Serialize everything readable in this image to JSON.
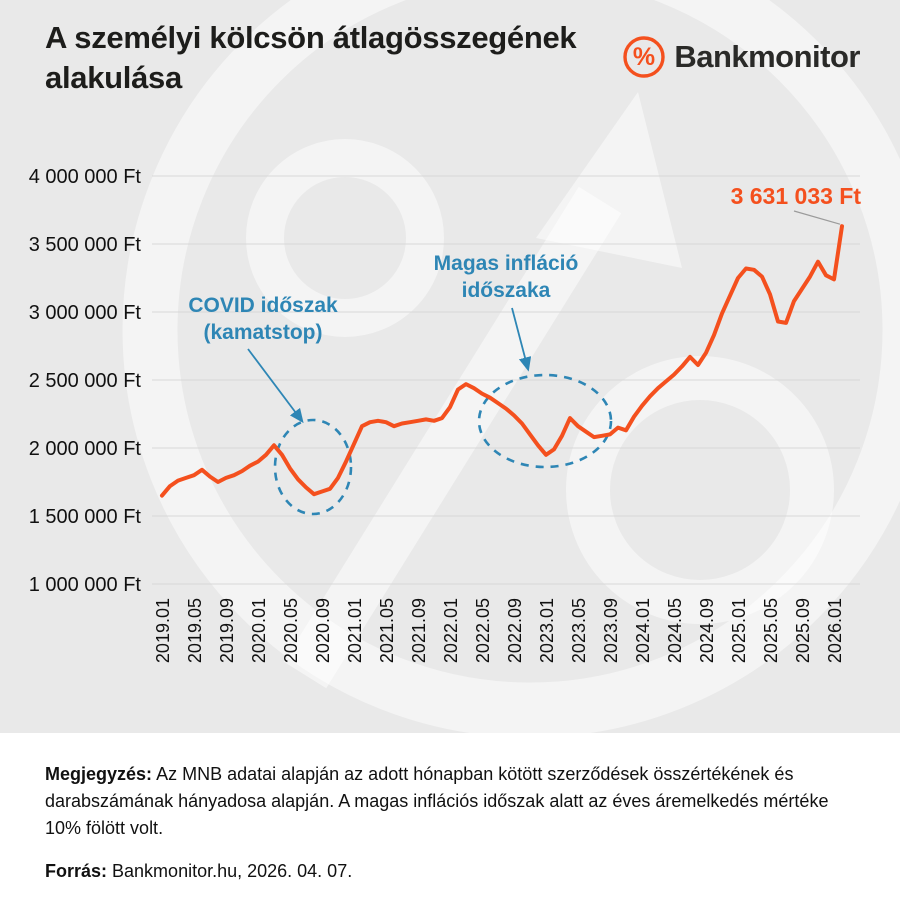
{
  "header": {
    "title": "A személyi kölcsön átlagösszegének alakulása",
    "brand": "Bankmonitor",
    "brand_icon": "percent-in-circle",
    "brand_color": "#f4501e"
  },
  "chart_data": {
    "type": "line",
    "series_name": "A személyi kölcsön átlagösszege",
    "unit": "Ft",
    "line_color": "#f4501e",
    "grid": true,
    "ylim": [
      1000000,
      4000000
    ],
    "yticks": [
      {
        "value": 4000000,
        "label": "4 000 000 Ft"
      },
      {
        "value": 3500000,
        "label": "3 500 000 Ft"
      },
      {
        "value": 3000000,
        "label": "3 000 000 Ft"
      },
      {
        "value": 2500000,
        "label": "2 500 000 Ft"
      },
      {
        "value": 2000000,
        "label": "2 000 000 Ft"
      },
      {
        "value": 1500000,
        "label": "1 500 000 Ft"
      },
      {
        "value": 1000000,
        "label": "1 000 000 Ft"
      }
    ],
    "x_tick_every": 4,
    "x": [
      "2019.01",
      "2019.02",
      "2019.03",
      "2019.04",
      "2019.05",
      "2019.06",
      "2019.07",
      "2019.08",
      "2019.09",
      "2019.10",
      "2019.11",
      "2019.12",
      "2020.01",
      "2020.02",
      "2020.03",
      "2020.04",
      "2020.05",
      "2020.06",
      "2020.07",
      "2020.08",
      "2020.09",
      "2020.10",
      "2020.11",
      "2020.12",
      "2021.01",
      "2021.02",
      "2021.03",
      "2021.04",
      "2021.05",
      "2021.06",
      "2021.07",
      "2021.08",
      "2021.09",
      "2021.10",
      "2021.11",
      "2021.12",
      "2022.01",
      "2022.02",
      "2022.03",
      "2022.04",
      "2022.05",
      "2022.06",
      "2022.07",
      "2022.08",
      "2022.09",
      "2022.10",
      "2022.11",
      "2022.12",
      "2023.01",
      "2023.02",
      "2023.03",
      "2023.04",
      "2023.05",
      "2023.06",
      "2023.07",
      "2023.08",
      "2023.09",
      "2023.10",
      "2023.11",
      "2023.12",
      "2024.01",
      "2024.02",
      "2024.03",
      "2024.04",
      "2024.05",
      "2024.06",
      "2024.07",
      "2024.08",
      "2024.09",
      "2024.10",
      "2024.11",
      "2024.12",
      "2025.01",
      "2025.02",
      "2025.03",
      "2025.04",
      "2025.05",
      "2025.06",
      "2025.07",
      "2025.08",
      "2025.09",
      "2025.10",
      "2025.11",
      "2025.12",
      "2026.01",
      "2026.02"
    ],
    "values": [
      1650000,
      1720000,
      1760000,
      1780000,
      1800000,
      1840000,
      1790000,
      1750000,
      1780000,
      1800000,
      1830000,
      1870000,
      1900000,
      1950000,
      2020000,
      1950000,
      1850000,
      1770000,
      1710000,
      1660000,
      1680000,
      1700000,
      1780000,
      1900000,
      2030000,
      2160000,
      2190000,
      2200000,
      2190000,
      2160000,
      2180000,
      2190000,
      2200000,
      2210000,
      2200000,
      2220000,
      2300000,
      2430000,
      2470000,
      2440000,
      2400000,
      2370000,
      2330000,
      2290000,
      2240000,
      2180000,
      2100000,
      2020000,
      1950000,
      1990000,
      2090000,
      2220000,
      2160000,
      2120000,
      2080000,
      2090000,
      2100000,
      2150000,
      2130000,
      2230000,
      2310000,
      2380000,
      2440000,
      2490000,
      2540000,
      2600000,
      2670000,
      2610000,
      2700000,
      2830000,
      2990000,
      3120000,
      3250000,
      3320000,
      3310000,
      3260000,
      3130000,
      2930000,
      2920000,
      3080000,
      3170000,
      3260000,
      3370000,
      3270000,
      3240000,
      3631033
    ],
    "last_value_label": "3 631 033 Ft",
    "annotations": [
      {
        "id": "covid",
        "line1": "COVID időszak",
        "line2": "(kamatstop)",
        "color": "#2e86b5"
      },
      {
        "id": "inflation",
        "line1": "Magas infláció",
        "line2": "időszaka",
        "color": "#2e86b5"
      }
    ]
  },
  "footer": {
    "note_label": "Megjegyzés:",
    "note_text": "Az MNB adatai alapján az adott hónapban kötött szerződések összértékének és darabszámának hányadosa alapján. A magas inflációs időszak alatt az éves áremelkedés mértéke 10% fölött volt.",
    "source_label": "Forrás:",
    "source_text": "Bankmonitor.hu, 2026. 04. 07."
  }
}
